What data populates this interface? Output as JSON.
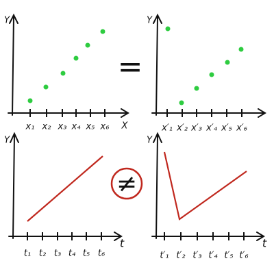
{
  "panels": [
    {
      "y_label": "Y",
      "x_label": "X",
      "ticks": [
        "x₁",
        "x₂",
        "x₃",
        "x₄",
        "x₅",
        "x₆"
      ]
    },
    {
      "y_label": "Y",
      "ticks": [
        "x′₁",
        "x′₂",
        "x′₃",
        "x′₄",
        "x′₅",
        "x′₆"
      ]
    },
    {
      "y_label": "Y",
      "x_label": "t",
      "ticks": [
        "t₁",
        "t₂",
        "t₃",
        "t₄",
        "t₅",
        "t₆"
      ]
    },
    {
      "y_label": "Y",
      "x_label": "t",
      "ticks": [
        "t′₁",
        "t′₂",
        "t′₃",
        "t′₄",
        "t′₅",
        "t′₆"
      ]
    }
  ],
  "relations": [
    "=",
    "≠"
  ]
}
